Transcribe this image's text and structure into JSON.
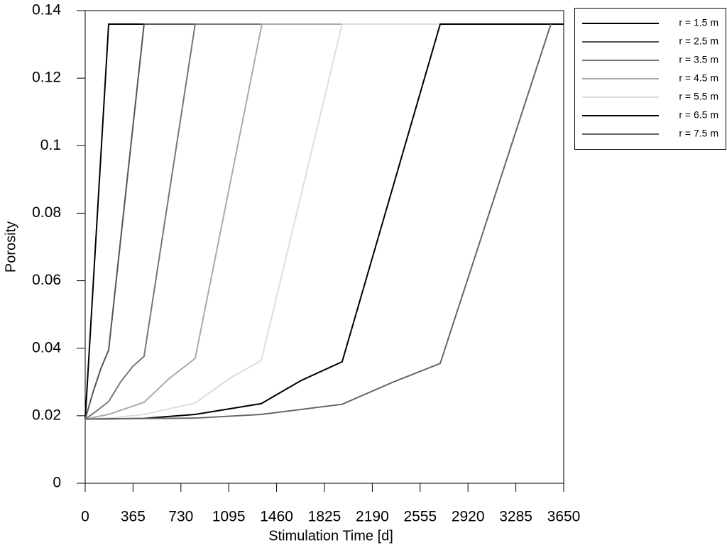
{
  "chart_data": {
    "type": "line",
    "xlabel": "Stimulation Time [d]",
    "ylabel": "Porosity",
    "xlim": [
      0,
      3650
    ],
    "xticks": [
      0,
      365,
      730,
      1095,
      1460,
      1825,
      2190,
      2555,
      2920,
      3285,
      3650
    ],
    "ylim": [
      0,
      0.14
    ],
    "yticks": [
      0,
      0.02,
      0.04,
      0.06,
      0.08,
      0.1,
      0.12,
      0.14
    ],
    "legend": "outside-right",
    "series": [
      {
        "name": "r = 1.5 m",
        "color": "#000000",
        "x": [
          0,
          179,
          3650
        ],
        "values": [
          0.019,
          0.136,
          0.136
        ]
      },
      {
        "name": "r = 2.5 m",
        "color": "#555555",
        "x": [
          0,
          60,
          120,
          179,
          449,
          3650
        ],
        "values": [
          0.019,
          0.027,
          0.034,
          0.0395,
          0.136,
          0.136
        ]
      },
      {
        "name": "r = 3.5 m",
        "color": "#777777",
        "x": [
          0,
          90,
          179,
          270,
          360,
          449,
          839,
          3650
        ],
        "values": [
          0.019,
          0.0215,
          0.0242,
          0.03,
          0.0345,
          0.0376,
          0.136,
          0.136
        ]
      },
      {
        "name": "r = 4.5 m",
        "color": "#aaaaaa",
        "x": [
          0,
          179,
          449,
          640,
          839,
          1348,
          3650
        ],
        "values": [
          0.019,
          0.0204,
          0.024,
          0.031,
          0.037,
          0.136,
          0.136
        ]
      },
      {
        "name": "r = 5.5 m",
        "color": "#dddddd",
        "x": [
          0,
          179,
          449,
          839,
          1100,
          1343,
          1960,
          3650
        ],
        "values": [
          0.019,
          0.0193,
          0.0204,
          0.0238,
          0.031,
          0.0364,
          0.136,
          0.136
        ]
      },
      {
        "name": "r = 6.5 m",
        "color": "#000000",
        "x": [
          0,
          449,
          839,
          1343,
          1650,
          1960,
          2708,
          3650
        ],
        "values": [
          0.019,
          0.0192,
          0.0204,
          0.0236,
          0.0305,
          0.036,
          0.136,
          0.136
        ]
      },
      {
        "name": "r = 7.5 m",
        "color": "#666666",
        "x": [
          0,
          839,
          1343,
          1960,
          2350,
          2708,
          3552
        ],
        "values": [
          0.019,
          0.0193,
          0.0204,
          0.0234,
          0.03,
          0.0355,
          0.136
        ]
      }
    ]
  }
}
